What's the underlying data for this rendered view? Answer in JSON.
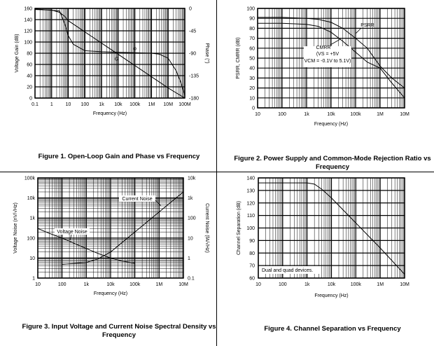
{
  "chart_data": [
    {
      "type": "line",
      "title": "Figure 1. Open-Loop Gain and Phase vs Frequency",
      "xlabel": "Frequency (Hz)",
      "ylabel": "Voltage Gain (dB)",
      "y2label": "Phase (°)",
      "xscale": "log",
      "xlim": [
        0.1,
        100000000
      ],
      "ylim": [
        0,
        160
      ],
      "y2lim": [
        -180,
        0
      ],
      "x_ticks": [
        "0.1",
        "1",
        "10",
        "100",
        "1k",
        "10k",
        "100k",
        "1M",
        "10M",
        "100M"
      ],
      "y_ticks": [
        "0",
        "20",
        "40",
        "60",
        "80",
        "100",
        "120",
        "140",
        "160"
      ],
      "y2_ticks": [
        "0",
        "-45",
        "-90",
        "-135",
        "-180"
      ],
      "series": [
        {
          "name": "G",
          "axis": "left",
          "x": [
            0.1,
            1,
            3,
            6,
            10,
            100,
            1000,
            10000,
            100000,
            1000000,
            10000000,
            100000000
          ],
          "y": [
            158,
            157,
            153,
            146,
            138,
            118,
            98,
            78,
            58,
            38,
            18,
            0
          ]
        },
        {
          "name": "φ",
          "axis": "right",
          "x": [
            0.1,
            3,
            6,
            10,
            20,
            100,
            1000,
            10000,
            100000,
            1000000,
            3000000,
            10000000,
            30000000,
            60000000,
            100000000
          ],
          "y": [
            -1,
            -5,
            -30,
            -55,
            -72,
            -85,
            -87,
            -88,
            -89,
            -90,
            -92,
            -100,
            -125,
            -150,
            -175
          ]
        }
      ],
      "labels": [
        "φ",
        "G"
      ]
    },
    {
      "type": "line",
      "title": "Figure 2. Power Supply and Common-Mode Rejection Ratio vs Frequency",
      "xlabel": "Frequency (Hz)",
      "ylabel": "PSRR, CMRR (dB)",
      "xscale": "log",
      "xlim": [
        10,
        10000000
      ],
      "ylim": [
        0,
        100
      ],
      "x_ticks": [
        "10",
        "100",
        "1k",
        "10k",
        "100k",
        "1M",
        "10M"
      ],
      "y_ticks": [
        "0",
        "10",
        "20",
        "30",
        "40",
        "50",
        "60",
        "70",
        "80",
        "90",
        "100"
      ],
      "series": [
        {
          "name": "PSRR",
          "x": [
            10,
            100,
            1000,
            3000,
            10000,
            30000,
            100000,
            300000,
            1000000,
            3000000,
            10000000
          ],
          "y": [
            91,
            91,
            90,
            89,
            86,
            80,
            70,
            60,
            42,
            30,
            20
          ]
        },
        {
          "name": "CMRR",
          "x": [
            10,
            100,
            1000,
            3000,
            10000,
            30000,
            100000,
            300000,
            1000000,
            3000000,
            10000000
          ],
          "y": [
            85,
            85,
            84,
            82,
            76,
            67,
            56,
            46,
            40,
            25,
            10
          ]
        }
      ],
      "annotations": [
        "PSRR",
        "CMRR",
        "(VS = +5V",
        "VCM = -0.1V to 5.1V)"
      ]
    },
    {
      "type": "line",
      "title": "Figure 3. Input Voltage and Current Noise Spectral Density vs Frequency",
      "xlabel": "Frequency (Hz)",
      "ylabel": "Voltage Noise (nV/√Hz)",
      "y2label": "Current Noise (fA/√Hz)",
      "xscale": "log",
      "yscale": "log",
      "xlim": [
        10,
        10000000
      ],
      "ylim": [
        1,
        100000
      ],
      "y2lim": [
        0.1,
        10000
      ],
      "x_ticks": [
        "10",
        "100",
        "1k",
        "10k",
        "100k",
        "1M",
        "10M"
      ],
      "y_ticks": [
        "1",
        "10",
        "100",
        "1k",
        "10k",
        "100k"
      ],
      "y2_ticks": [
        "0.1",
        "1",
        "10",
        "100",
        "1k",
        "10k"
      ],
      "series": [
        {
          "name": "Current Noise",
          "axis": "right",
          "x": [
            100,
            1000,
            3000,
            10000,
            100000,
            1000000,
            10000000
          ],
          "y": [
            0.48,
            0.6,
            0.9,
            2,
            20,
            200,
            2000
          ]
        },
        {
          "name": "Voltage Noise",
          "axis": "left",
          "x": [
            10,
            30,
            100,
            300,
            1000,
            3000,
            10000,
            30000,
            100000
          ],
          "y": [
            300,
            170,
            100,
            55,
            30,
            17,
            10,
            7,
            5.5
          ]
        }
      ],
      "annotations": [
        "Current Noise",
        "Voltage Noise"
      ]
    },
    {
      "type": "line",
      "title": "Figure 4. Channel Separation vs Frequency",
      "xlabel": "Frequency (Hz)",
      "ylabel": "Channel Separation (dB)",
      "xscale": "log",
      "xlim": [
        10,
        10000000
      ],
      "ylim": [
        60,
        140
      ],
      "x_ticks": [
        "10",
        "100",
        "1k",
        "10k",
        "100k",
        "1M",
        "10M"
      ],
      "y_ticks": [
        "60",
        "70",
        "80",
        "90",
        "100",
        "110",
        "120",
        "130",
        "140"
      ],
      "series": [
        {
          "name": "Channel Separation",
          "x": [
            10,
            1000,
            2000,
            4000,
            10000,
            100000,
            1000000,
            10000000
          ],
          "y": [
            136,
            136,
            135,
            131,
            124,
            104,
            84,
            63
          ]
        }
      ],
      "annotations": [
        "Dual and quad devices."
      ]
    }
  ]
}
